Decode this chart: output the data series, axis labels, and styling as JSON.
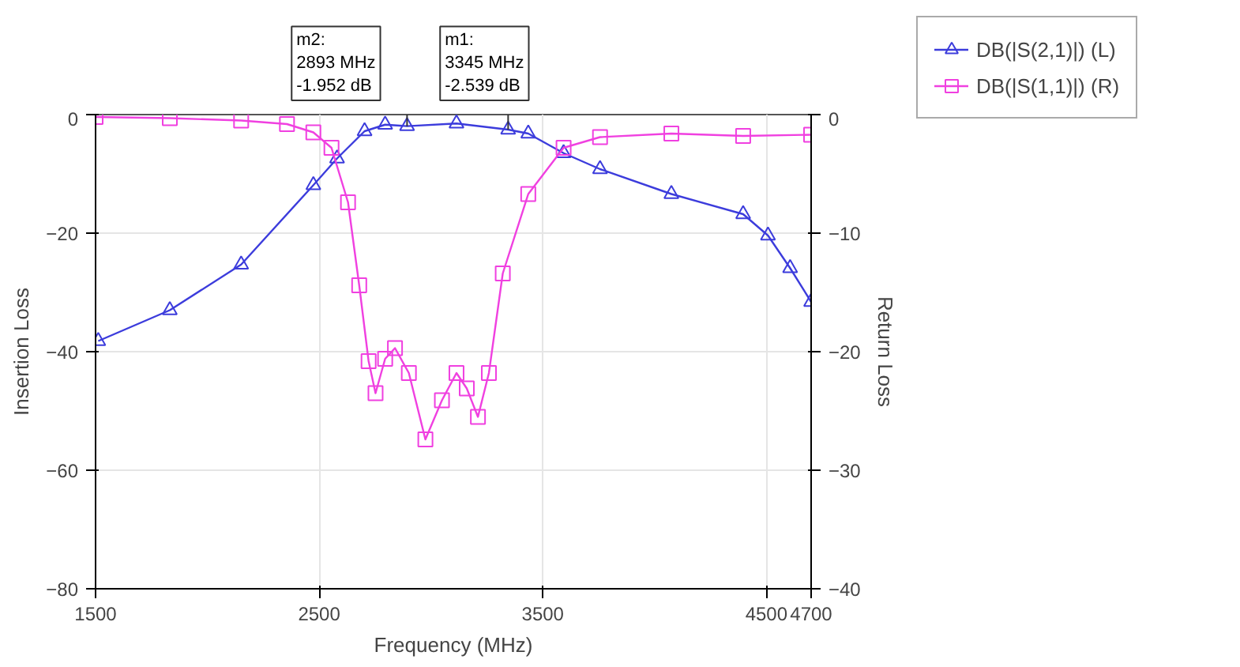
{
  "chart_data": {
    "type": "line",
    "xlabel": "Frequency (MHz)",
    "ylabel": "Insertion Loss",
    "y2label": "Return Loss",
    "xlim": [
      1500,
      4700
    ],
    "xticks": [
      1500,
      2500,
      3500,
      4500,
      4700
    ],
    "ylim": [
      -80,
      0
    ],
    "yticks": [
      -80,
      -60,
      -40,
      -20,
      0
    ],
    "y2lim": [
      -40,
      0
    ],
    "y2ticks": [
      -40,
      -30,
      -20,
      -10,
      0
    ],
    "grid": true,
    "legend": "right",
    "marker": "triangle",
    "line_style": "solid",
    "series": [
      {
        "name": "DB(|S(2,1)|) (L)",
        "color": "#3c3cdc",
        "x": [
          1512,
          1832,
          2151,
          2474,
          2580,
          2703,
          2795,
          2893,
          3114,
          3345,
          3435,
          3593,
          3756,
          4075,
          4396,
          4507,
          4606,
          4700
        ],
        "values": [
          -38.2,
          -33.0,
          -25.3,
          -11.9,
          -7.4,
          -2.8,
          -1.7,
          -1.952,
          -1.5,
          -2.539,
          -3.2,
          -6.5,
          -9.2,
          -13.4,
          -16.8,
          -20.4,
          -25.9,
          -31.6
        ]
      },
      {
        "name": "DB(|S(1,1)|) (R)",
        "color": "#f040e0",
        "marker": "square",
        "axis": "y2",
        "x": [
          1500,
          1832,
          2151,
          2356,
          2474,
          2555,
          2629,
          2679,
          2721,
          2752,
          2795,
          2839,
          2901,
          2975,
          3049,
          3114,
          3160,
          3210,
          3259,
          3321,
          3435,
          3593,
          3756,
          4075,
          4396,
          4700
        ],
        "values": [
          -0.2,
          -0.3,
          -0.5,
          -0.8,
          -1.5,
          -2.8,
          -7.4,
          -14.4,
          -20.8,
          -23.5,
          -20.6,
          -19.7,
          -21.8,
          -27.4,
          -24.1,
          -21.8,
          -23.1,
          -25.5,
          -21.8,
          -13.4,
          -6.7,
          -2.8,
          -1.9,
          -1.6,
          -1.8,
          -1.7
        ]
      }
    ],
    "annotations": [
      {
        "text": "m2:\n2893 MHz\n-1.952 dB",
        "x": 2893,
        "y": -1.952
      },
      {
        "text": "m1:\n3345 MHz\n-2.539 dB",
        "x": 3345,
        "y": -2.539
      }
    ]
  }
}
